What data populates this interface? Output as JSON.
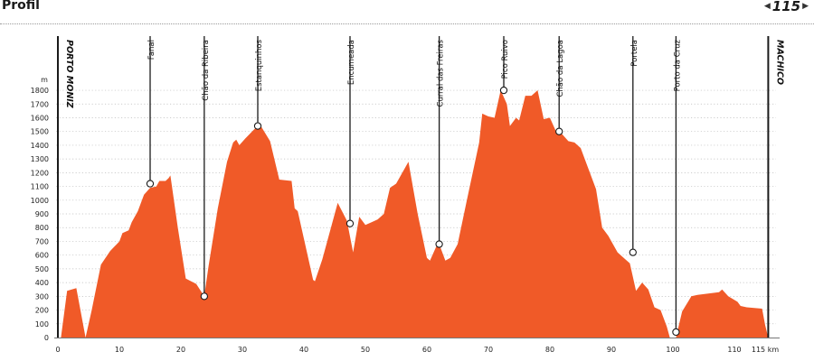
{
  "header": {
    "title": "Profil",
    "page_number": "115",
    "prev_icon": "triangle-left-icon",
    "next_icon": "triangle-right-icon"
  },
  "chart_data": {
    "type": "area",
    "title": "",
    "xlabel": "",
    "ylabel": "m",
    "x_unit": "km",
    "xlim": [
      0,
      115
    ],
    "ylim": [
      0,
      1800
    ],
    "x_ticks": [
      0,
      10,
      20,
      30,
      40,
      50,
      60,
      70,
      80,
      90,
      100,
      110,
      115
    ],
    "x_tick_labels": [
      "0",
      "10",
      "20",
      "30",
      "40",
      "50",
      "60",
      "70",
      "80",
      "90",
      "100",
      "110",
      "115 km"
    ],
    "y_ticks": [
      0,
      100,
      200,
      300,
      400,
      500,
      600,
      700,
      800,
      900,
      1000,
      1100,
      1200,
      1300,
      1400,
      1500,
      1600,
      1700,
      1800
    ],
    "fill_color": "#f05a28",
    "grid": "horizontal dotted",
    "profile": [
      [
        0.5,
        0
      ],
      [
        1.5,
        340
      ],
      [
        3,
        360
      ],
      [
        4.5,
        0
      ],
      [
        5.5,
        200
      ],
      [
        7,
        530
      ],
      [
        8.5,
        630
      ],
      [
        10,
        700
      ],
      [
        10.5,
        760
      ],
      [
        11.5,
        780
      ],
      [
        12,
        840
      ],
      [
        13,
        920
      ],
      [
        14,
        1040
      ],
      [
        15,
        1090
      ],
      [
        16,
        1100
      ],
      [
        16.5,
        1140
      ],
      [
        17.5,
        1140
      ],
      [
        18,
        1160
      ],
      [
        18.3,
        1180
      ],
      [
        19.5,
        800
      ],
      [
        20.8,
        430
      ],
      [
        22.5,
        390
      ],
      [
        23.8,
        300
      ],
      [
        24.5,
        520
      ],
      [
        26,
        940
      ],
      [
        27.5,
        1280
      ],
      [
        28.5,
        1420
      ],
      [
        29,
        1440
      ],
      [
        29.5,
        1400
      ],
      [
        30.5,
        1450
      ],
      [
        32,
        1520
      ],
      [
        33,
        1540
      ],
      [
        34.5,
        1430
      ],
      [
        36,
        1150
      ],
      [
        38,
        1140
      ],
      [
        38.5,
        940
      ],
      [
        39,
        920
      ],
      [
        41.5,
        420
      ],
      [
        41.8,
        410
      ],
      [
        43,
        570
      ],
      [
        45.5,
        980
      ],
      [
        47,
        850
      ],
      [
        48,
        620
      ],
      [
        49,
        880
      ],
      [
        50,
        820
      ],
      [
        51,
        840
      ],
      [
        52,
        860
      ],
      [
        53,
        900
      ],
      [
        54,
        1090
      ],
      [
        55,
        1120
      ],
      [
        57,
        1280
      ],
      [
        58.5,
        900
      ],
      [
        60,
        580
      ],
      [
        60.5,
        560
      ],
      [
        61.5,
        660
      ],
      [
        62,
        680
      ],
      [
        63,
        560
      ],
      [
        63.8,
        580
      ],
      [
        65,
        680
      ],
      [
        66.5,
        1000
      ],
      [
        68.5,
        1420
      ],
      [
        69,
        1630
      ],
      [
        70,
        1610
      ],
      [
        71,
        1600
      ],
      [
        72,
        1800
      ],
      [
        73,
        1700
      ],
      [
        73.5,
        1540
      ],
      [
        74.5,
        1600
      ],
      [
        75,
        1580
      ],
      [
        76,
        1760
      ],
      [
        77,
        1760
      ],
      [
        78,
        1800
      ],
      [
        79,
        1590
      ],
      [
        80,
        1600
      ],
      [
        81,
        1500
      ],
      [
        82,
        1480
      ],
      [
        83,
        1430
      ],
      [
        84,
        1420
      ],
      [
        85,
        1380
      ],
      [
        87.5,
        1080
      ],
      [
        88.5,
        800
      ],
      [
        89.5,
        740
      ],
      [
        91,
        620
      ],
      [
        92,
        580
      ],
      [
        93,
        540
      ],
      [
        94,
        340
      ],
      [
        95,
        400
      ],
      [
        96,
        350
      ],
      [
        97,
        220
      ],
      [
        98,
        200
      ],
      [
        99,
        80
      ],
      [
        99.5,
        0
      ],
      [
        100.5,
        0
      ],
      [
        101.5,
        190
      ],
      [
        103,
        300
      ],
      [
        104,
        310
      ],
      [
        107.5,
        330
      ],
      [
        108,
        350
      ],
      [
        109,
        300
      ],
      [
        110.5,
        260
      ],
      [
        111,
        230
      ],
      [
        112,
        220
      ],
      [
        114.5,
        210
      ],
      [
        115,
        90
      ],
      [
        115.5,
        0
      ]
    ],
    "labels": [
      {
        "text": "PORTO MONIZ",
        "x": 0,
        "style": "endpoint"
      },
      {
        "text": "Fanal",
        "x": 15,
        "y": 1120,
        "style": "waypoint"
      },
      {
        "text": "Chão da Ribeira",
        "x": 23.8,
        "y": 300,
        "style": "waypoint"
      },
      {
        "text": "Estanquinhos",
        "x": 32.5,
        "y": 1540,
        "style": "waypoint"
      },
      {
        "text": "Encumeada",
        "x": 47.5,
        "y": 830,
        "style": "waypoint"
      },
      {
        "text": "Curral das Freiras",
        "x": 62,
        "y": 680,
        "style": "waypoint"
      },
      {
        "text": "Pico Ruivo",
        "x": 72.5,
        "y": 1800,
        "style": "waypoint"
      },
      {
        "text": "Chão da Lagoa",
        "x": 81.5,
        "y": 1500,
        "style": "waypoint"
      },
      {
        "text": "Portela",
        "x": 93.5,
        "y": 620,
        "style": "waypoint"
      },
      {
        "text": "Porto da Cruz",
        "x": 100.5,
        "y": 40,
        "style": "waypoint"
      },
      {
        "text": "MACHICO",
        "x": 115.5,
        "style": "endpoint"
      }
    ]
  }
}
